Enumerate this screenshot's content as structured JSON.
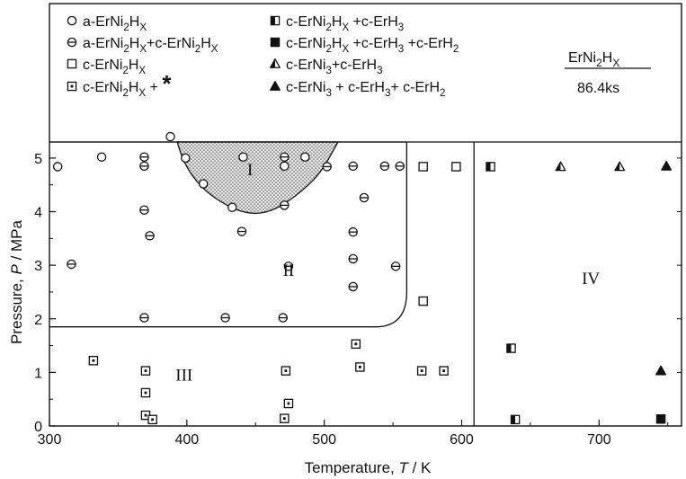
{
  "chart_data": {
    "type": "scatter",
    "xlabel": "Temperature, T / K",
    "ylabel": "Pressure, P / MPa",
    "xlim": [
      300,
      760
    ],
    "ylim": [
      0,
      5.3
    ],
    "x_ticks": [
      300,
      400,
      500,
      600,
      700
    ],
    "y_ticks": [
      0,
      1,
      2,
      3,
      4,
      5
    ],
    "grid": false,
    "legend_placement": "top",
    "annotation": {
      "compound": "ErNi2HX",
      "time": "86.4ks"
    },
    "region_labels": [
      "I",
      "II",
      "III",
      "IV"
    ],
    "series": [
      {
        "marker": "circle",
        "name": "a-ErNi2HX",
        "points": [
          [
            388,
            5.4
          ],
          [
            306,
            4.84
          ],
          [
            338,
            5.02
          ],
          [
            399,
            5.0
          ],
          [
            412,
            4.52
          ],
          [
            433,
            4.08
          ],
          [
            441,
            5.02
          ],
          [
            471,
            4.85
          ],
          [
            486,
            5.02
          ]
        ]
      },
      {
        "marker": "circle-bar",
        "name": "a-ErNi2HX+c-ErNi2HX",
        "points": [
          [
            316,
            3.02
          ],
          [
            369,
            5.02
          ],
          [
            369,
            4.85
          ],
          [
            369,
            4.03
          ],
          [
            373,
            3.55
          ],
          [
            440,
            3.63
          ],
          [
            471,
            5.02
          ],
          [
            471,
            4.12
          ],
          [
            474,
            2.98
          ],
          [
            502,
            4.84
          ],
          [
            521,
            4.85
          ],
          [
            521,
            3.62
          ],
          [
            521,
            3.12
          ],
          [
            521,
            2.6
          ],
          [
            529,
            4.26
          ],
          [
            544,
            4.85
          ],
          [
            555,
            4.85
          ],
          [
            552,
            2.98
          ],
          [
            369,
            2.02
          ],
          [
            428,
            2.02
          ],
          [
            470,
            2.02
          ]
        ]
      },
      {
        "marker": "square",
        "name": "c-ErNi2HX",
        "points": [
          [
            572,
            4.84
          ],
          [
            596,
            4.84
          ],
          [
            572,
            2.33
          ]
        ]
      },
      {
        "marker": "square-dot",
        "name": "c-ErNi2HX + *",
        "points": [
          [
            332,
            1.22
          ],
          [
            370,
            1.03
          ],
          [
            370,
            0.62
          ],
          [
            370,
            0.2
          ],
          [
            375,
            0.12
          ],
          [
            472,
            1.03
          ],
          [
            474,
            0.42
          ],
          [
            471,
            0.14
          ],
          [
            523,
            1.53
          ],
          [
            526,
            1.1
          ],
          [
            571,
            1.03
          ],
          [
            587,
            1.03
          ]
        ]
      },
      {
        "marker": "square-half",
        "name": "c-ErNi2HX +c-ErH3",
        "points": [
          [
            621,
            4.84
          ],
          [
            636,
            1.45
          ],
          [
            639,
            0.12
          ]
        ]
      },
      {
        "marker": "square-filled",
        "name": "c-ErNi2HX +c-ErH3 +c-ErH2",
        "points": [
          [
            745,
            0.13
          ]
        ]
      },
      {
        "marker": "triangle-half",
        "name": "c-ErNi3+c-ErH3",
        "points": [
          [
            672,
            4.84
          ],
          [
            715,
            4.84
          ]
        ]
      },
      {
        "marker": "triangle-filled",
        "name": "c-ErNi3 + c-ErH3+ c-ErH2",
        "points": [
          [
            749,
            4.85
          ],
          [
            745,
            1.03
          ]
        ]
      }
    ],
    "boundaries": {
      "region_I": [
        [
          393,
          5.3
        ],
        [
          398,
          4.9
        ],
        [
          410,
          4.45
        ],
        [
          428,
          4.12
        ],
        [
          445,
          3.95
        ],
        [
          462,
          4.0
        ],
        [
          480,
          4.3
        ],
        [
          497,
          4.7
        ],
        [
          510,
          5.3
        ]
      ],
      "region_II_III": [
        [
          300,
          1.85
        ],
        [
          537,
          1.85
        ],
        [
          550,
          2.0
        ],
        [
          558,
          2.5
        ],
        [
          560,
          3.2
        ],
        [
          560,
          5.3
        ]
      ],
      "region_IV": [
        [
          609,
          0
        ],
        [
          609,
          5.3
        ]
      ]
    }
  }
}
